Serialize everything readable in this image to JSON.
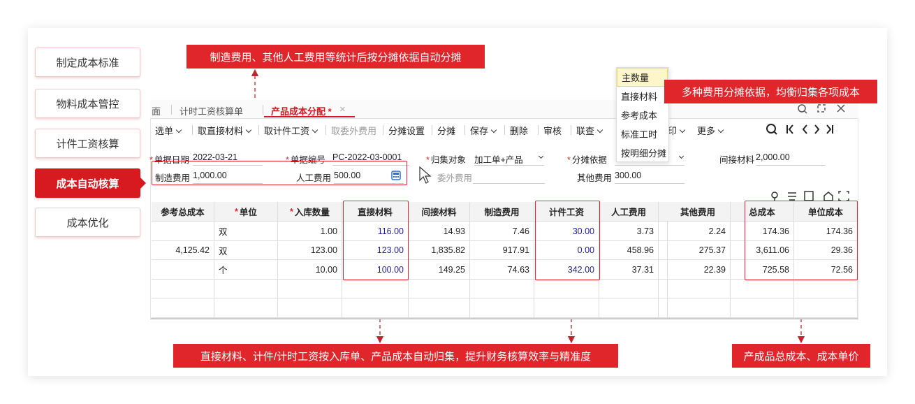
{
  "menu": {
    "items": [
      {
        "label": "制定成本标准",
        "active": false
      },
      {
        "label": "物料成本管控",
        "active": false
      },
      {
        "label": "计件工资核算",
        "active": false
      },
      {
        "label": "成本自动核算",
        "active": true
      },
      {
        "label": "成本优化",
        "active": false
      }
    ]
  },
  "callouts": {
    "top": "制造费用、其他人工费用等统计后按分摊依据自动分摊",
    "right": "多种费用分摊依据，均衡归集各项成本",
    "bottom": "直接材料、计件/计时工资按入库单、产品成本自动归集，提升财务核算效率与精准度",
    "bottom_right": "产成品总成本、成本单价"
  },
  "tabs": [
    {
      "label": "面",
      "active": false
    },
    {
      "label": "计时工资核算单",
      "active": false
    },
    {
      "label": "产品成本分配 *",
      "active": true
    }
  ],
  "toolbar": [
    {
      "label": "选单",
      "dropdown": true,
      "disabled": false
    },
    {
      "label": "取直接材料",
      "dropdown": true,
      "disabled": false
    },
    {
      "label": "取计件工资",
      "dropdown": true,
      "disabled": false
    },
    {
      "label": "取委外费用",
      "dropdown": false,
      "disabled": true
    },
    {
      "label": "分摊设置",
      "dropdown": false,
      "disabled": false
    },
    {
      "label": "分摊",
      "dropdown": false,
      "disabled": false
    },
    {
      "label": "保存",
      "dropdown": true,
      "disabled": false
    },
    {
      "label": "删除",
      "dropdown": false,
      "disabled": false
    },
    {
      "label": "审核",
      "dropdown": false,
      "disabled": false
    },
    {
      "label": "联查",
      "dropdown": true,
      "disabled": false
    },
    {
      "label": "印",
      "dropdown": true,
      "disabled": false
    },
    {
      "label": "更多",
      "dropdown": true,
      "disabled": false
    }
  ],
  "form": {
    "fields": [
      {
        "mark": "*",
        "label": "单据日期",
        "value": "2022-03-21",
        "select": false,
        "disabled": false
      },
      {
        "mark": "*",
        "label": "单据编号",
        "value": "PC-2022-03-0001",
        "select": false,
        "disabled": false
      },
      {
        "mark": "*",
        "label": "归集对象",
        "value": "加工单+产品",
        "select": true,
        "disabled": false
      },
      {
        "mark": "*",
        "label": "分摊依据",
        "value": null,
        "select": true,
        "disabled": false
      },
      {
        "mark": null,
        "label": "间接材料",
        "value": "2,000.00",
        "select": false,
        "disabled": false
      },
      {
        "mark": null,
        "label": "制造费用",
        "value": "1,000.00",
        "select": false,
        "disabled": false
      },
      {
        "mark": null,
        "label": "人工费用",
        "value": "500.00",
        "select": false,
        "disabled": false
      },
      {
        "mark": null,
        "label": "委外费用",
        "value": null,
        "select": false,
        "disabled": true
      },
      {
        "mark": null,
        "label": "其他费用",
        "value": "300.00",
        "select": false,
        "disabled": false
      }
    ]
  },
  "dropdown": {
    "options": [
      "主数量",
      "直接材料",
      "参考成本",
      "标准工时",
      "按明细分摊"
    ],
    "selected": 0
  },
  "table": {
    "columns": [
      {
        "mark": null,
        "label": "参考总成本",
        "color": "#222222"
      },
      {
        "mark": "*",
        "label": "单位",
        "color": "#222222"
      },
      {
        "mark": "*",
        "label": "入库数量",
        "color": "#222222"
      },
      {
        "mark": null,
        "label": "直接材料",
        "color": "#1f1fa0"
      },
      {
        "mark": null,
        "label": "间接材料",
        "color": "#222222"
      },
      {
        "mark": null,
        "label": "制造费用",
        "color": "#222222"
      },
      {
        "mark": null,
        "label": "计件工资",
        "color": "#1f1fa0"
      },
      {
        "mark": null,
        "label": "人工费用",
        "color": "#222222"
      },
      {
        "mark": null,
        "label": null,
        "color": "#222222"
      },
      {
        "mark": null,
        "label": "其他费用",
        "color": "#222222"
      },
      {
        "mark": null,
        "label": "总成本",
        "color": "#222222"
      },
      {
        "mark": null,
        "label": "单位成本",
        "color": "#222222"
      }
    ],
    "rows": [
      [
        null,
        "双",
        "1.00",
        "116.00",
        "14.93",
        "7.46",
        "30.00",
        "3.73",
        null,
        "2.24",
        "174.36",
        "174.36"
      ],
      [
        "4,125.42",
        "双",
        "123.00",
        "123.00",
        "1,835.82",
        "917.91",
        "0.00",
        "458.96",
        null,
        "275.37",
        "3,611.06",
        "29.36"
      ],
      [
        null,
        "个",
        "10.00",
        "100.00",
        "149.25",
        "74.63",
        "342.00",
        "37.31",
        null,
        "22.39",
        "725.58",
        "72.56"
      ],
      [
        null,
        null,
        null,
        null,
        null,
        null,
        null,
        null,
        null,
        null,
        null,
        null
      ],
      [
        null,
        null,
        null,
        null,
        null,
        null,
        null,
        null,
        null,
        null,
        null,
        null
      ]
    ]
  }
}
